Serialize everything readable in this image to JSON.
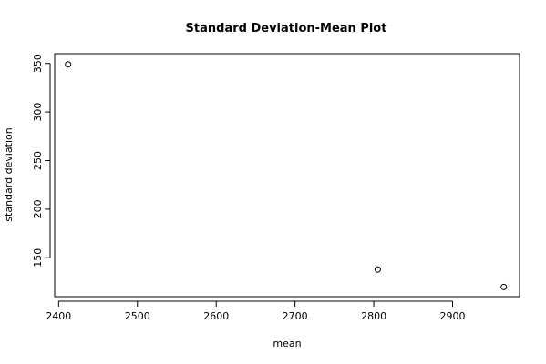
{
  "chart_data": {
    "type": "scatter",
    "title": "Standard Deviation-Mean Plot",
    "xlabel": "mean",
    "ylabel": "standard deviation",
    "xlim": [
      2395,
      2985
    ],
    "ylim": [
      110,
      360
    ],
    "xticks": [
      2400,
      2500,
      2600,
      2700,
      2800,
      2900
    ],
    "yticks": [
      150,
      200,
      250,
      300,
      350
    ],
    "grid": false,
    "points": [
      {
        "x": 2412,
        "y": 349
      },
      {
        "x": 2805,
        "y": 138
      },
      {
        "x": 2965,
        "y": 120
      }
    ]
  }
}
